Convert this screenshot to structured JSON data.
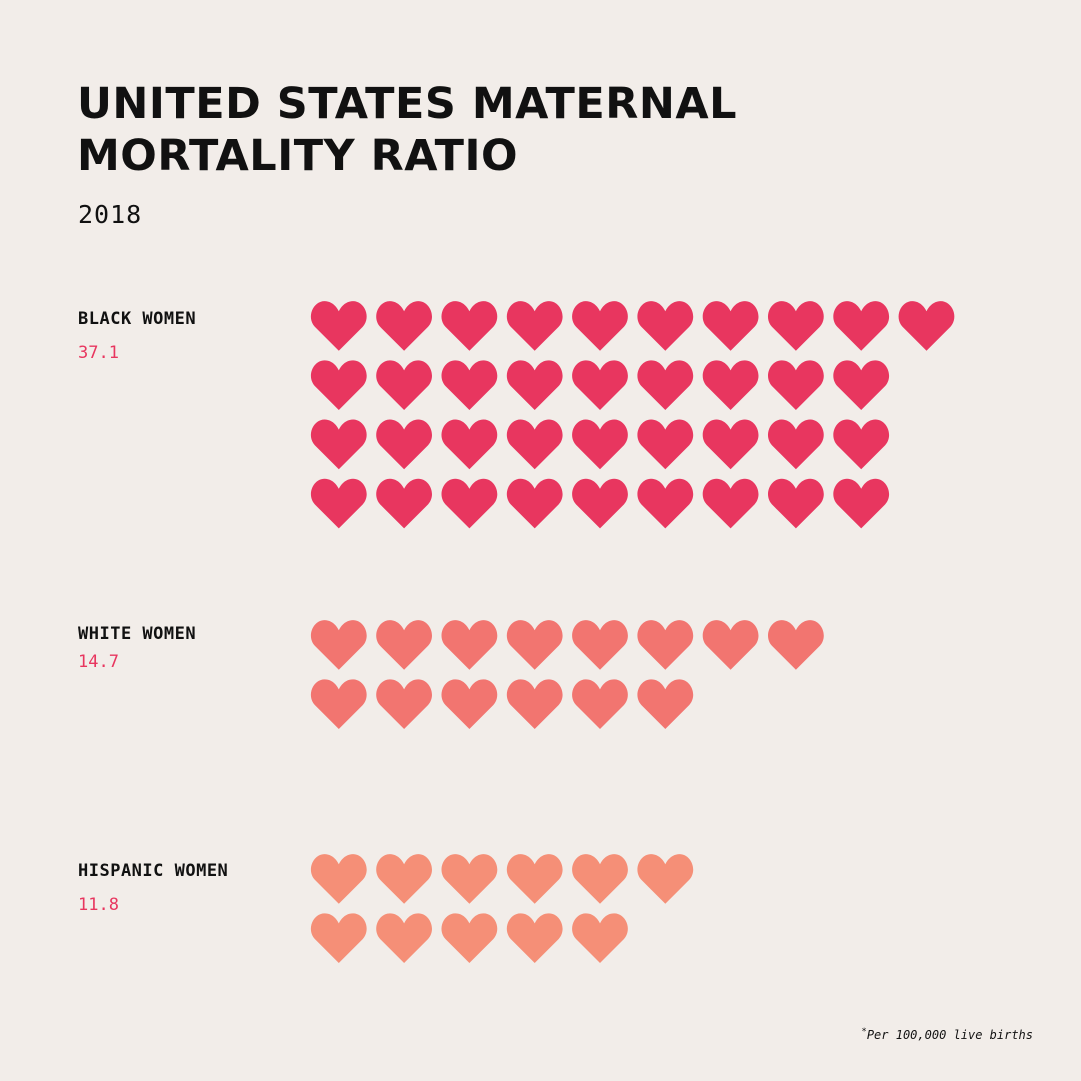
{
  "title_line1": "UNITED STATES MATERNAL",
  "title_line2": "MORTALITY RATIO",
  "year": "2018",
  "footnote": "Per 100,000 live births",
  "chart_data": {
    "type": "pictograph",
    "unit_per_icon": 1,
    "series": [
      {
        "name": "BLACK WOMEN",
        "label": "37.1",
        "value": 37.1,
        "color": "#e8365f"
      },
      {
        "name": "WHITE WOMEN",
        "label": "14.7",
        "value": 14.7,
        "color": "#f27570"
      },
      {
        "name": "HISPANIC WOMEN",
        "label": "11.8",
        "value": 11.8,
        "color": "#f58f77"
      }
    ]
  }
}
